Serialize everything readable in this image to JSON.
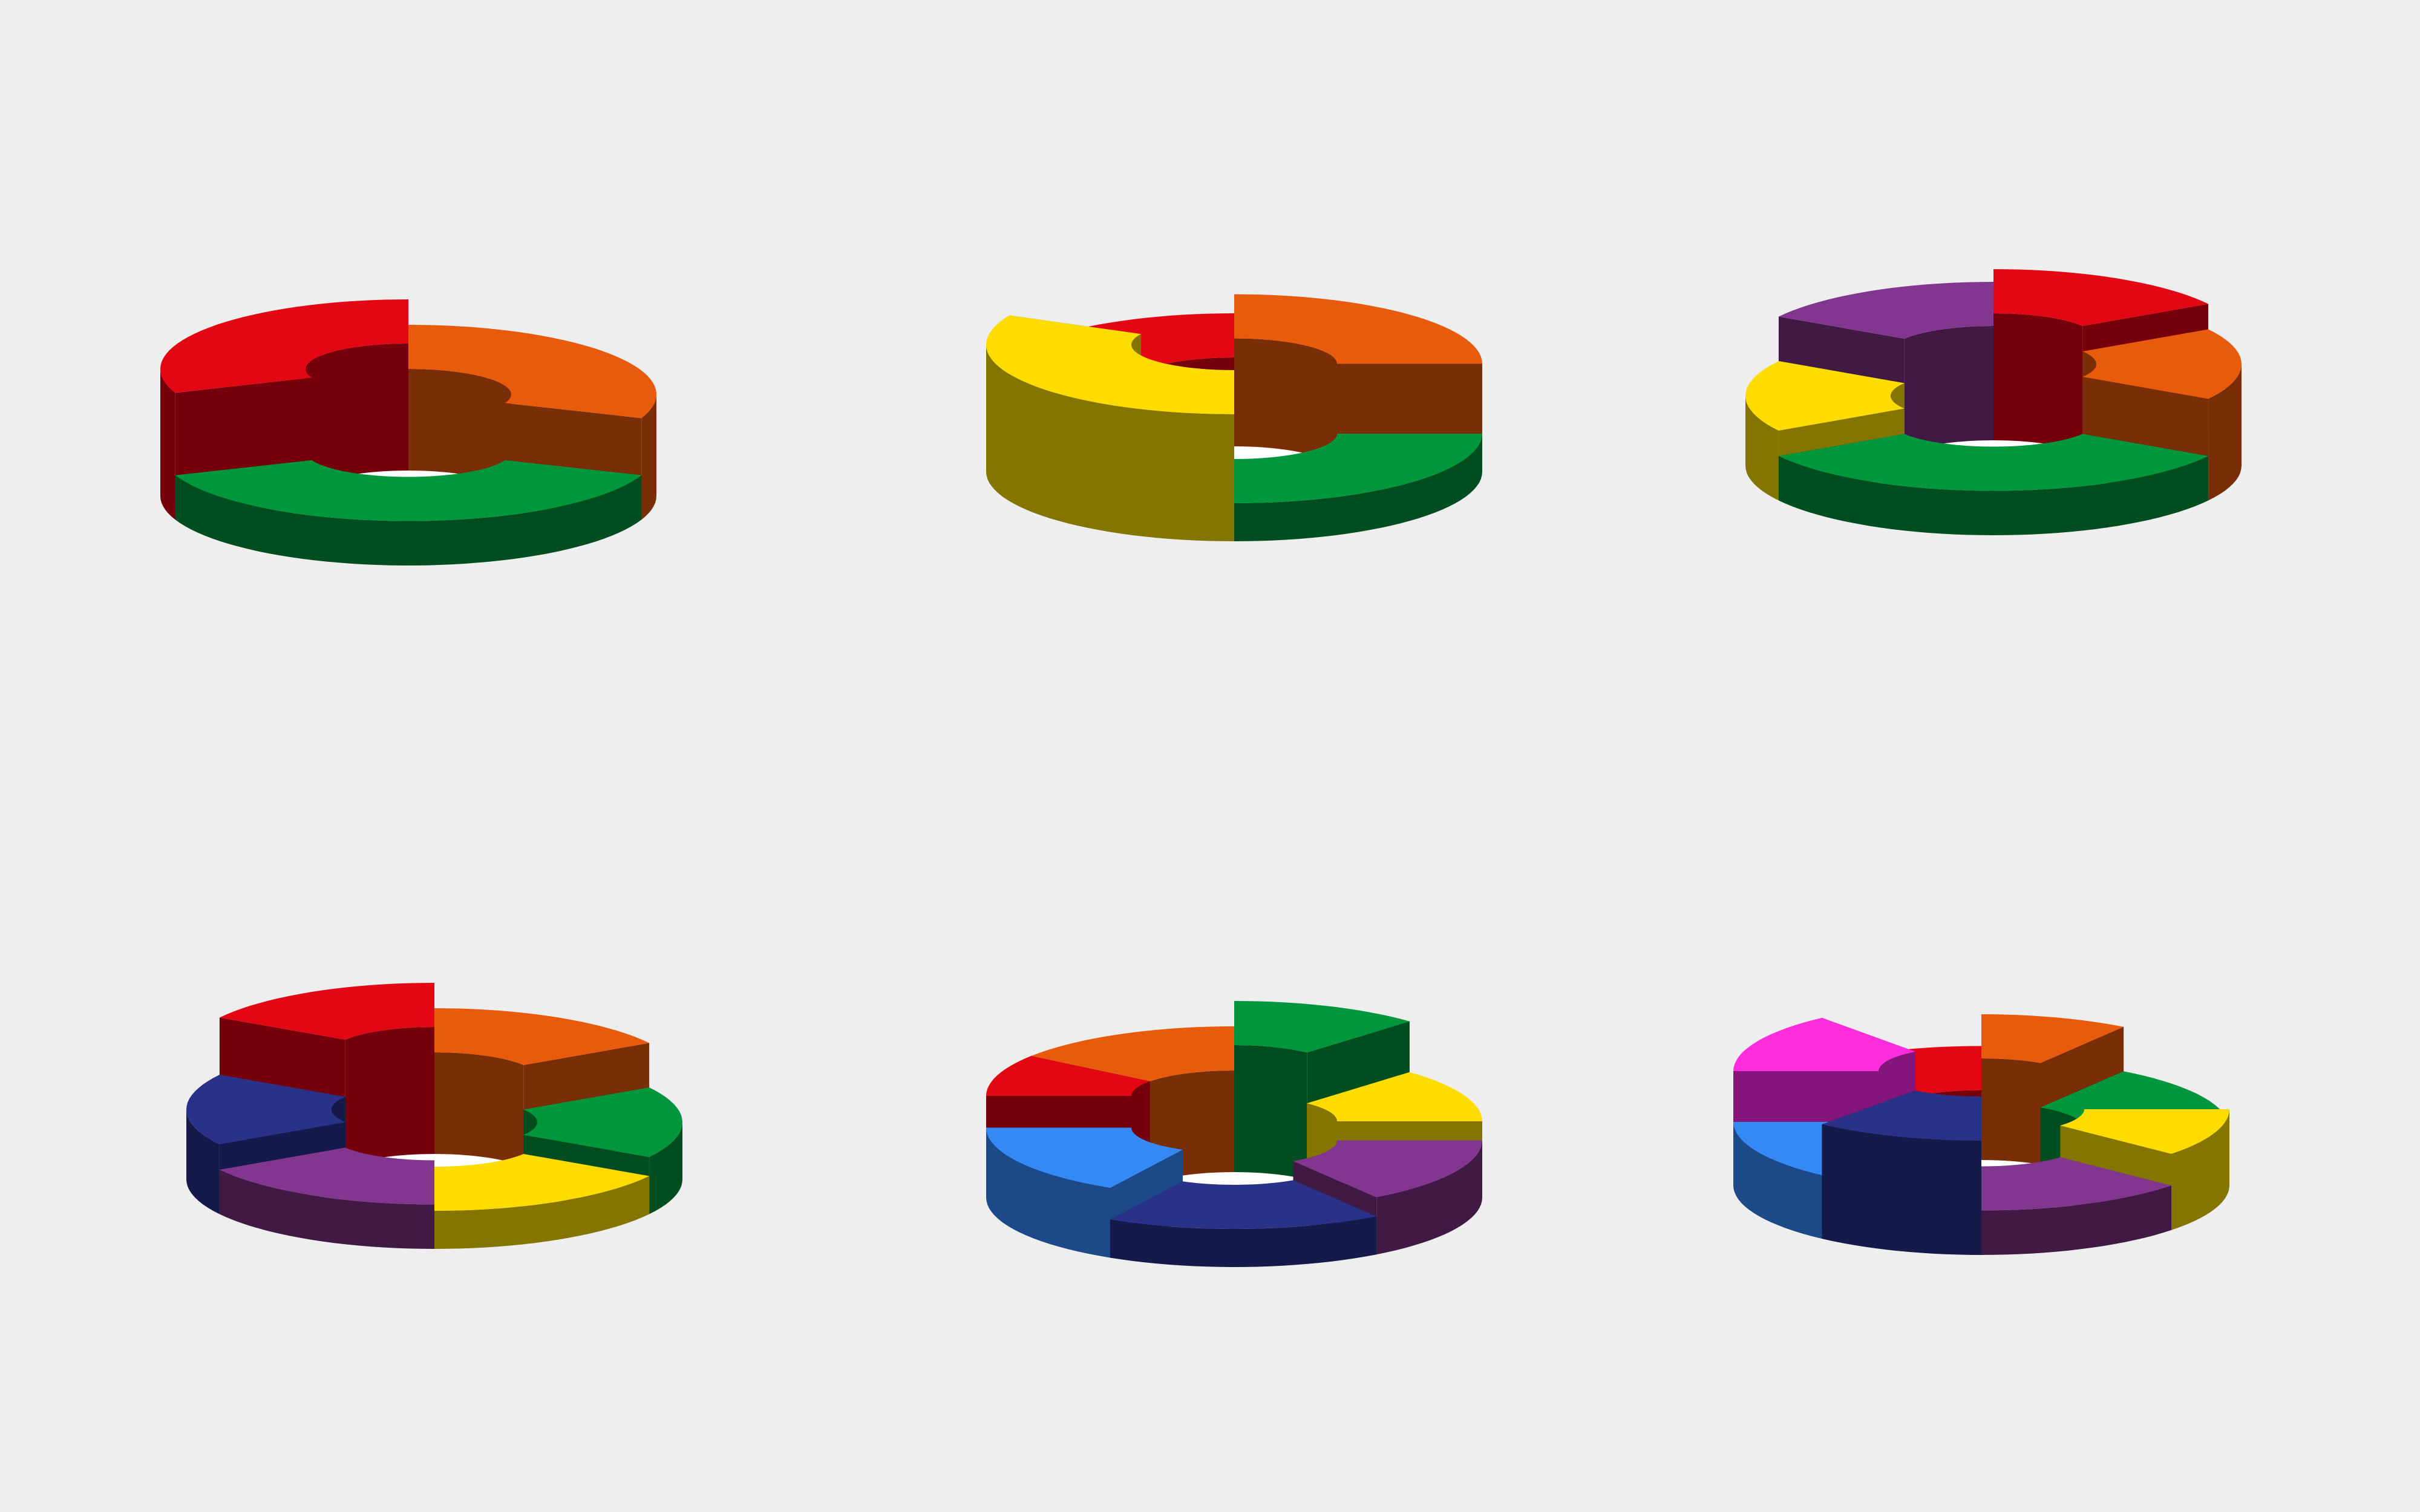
{
  "background": "#eeeeee",
  "chart_data": [
    {
      "type": "3d-donut",
      "segments": [
        {
          "color": "#e30613",
          "side": "#75000b",
          "a0": 90,
          "a1": 200,
          "h": 1.0
        },
        {
          "color": "#e85a0c",
          "side": "#7a2e08",
          "a0": -20,
          "a1": 90,
          "h": 0.8
        },
        {
          "color": "#00963b",
          "side": "#004e1f",
          "a0": 200,
          "a1": 340,
          "h": 0.35
        }
      ]
    },
    {
      "type": "3d-donut",
      "segments": [
        {
          "color": "#e85a0c",
          "side": "#7a2e08",
          "a0": 0,
          "a1": 90,
          "h": 0.85
        },
        {
          "color": "#e30613",
          "side": "#75000b",
          "a0": 90,
          "a1": 155,
          "h": 0.7
        },
        {
          "color": "#ffdc00",
          "side": "#847400",
          "a0": 155,
          "a1": 270,
          "h": 1.0
        },
        {
          "color": "#00963b",
          "side": "#004e1f",
          "a0": 270,
          "a1": 360,
          "h": 0.3
        }
      ]
    },
    {
      "type": "3d-donut",
      "segments": [
        {
          "color": "#e30613",
          "side": "#75000b",
          "a0": 30,
          "a1": 90,
          "h": 1.0
        },
        {
          "color": "#e85a0c",
          "side": "#7a2e08",
          "a0": -30,
          "a1": 30,
          "h": 0.8
        },
        {
          "color": "#00963b",
          "side": "#004e1f",
          "a0": 210,
          "a1": 330,
          "h": 0.35
        },
        {
          "color": "#ffdc00",
          "side": "#847400",
          "a0": 150,
          "a1": 210,
          "h": 0.55
        },
        {
          "color": "#83368f",
          "side": "#401a45",
          "a0": 90,
          "a1": 150,
          "h": 0.9
        }
      ]
    },
    {
      "type": "3d-donut",
      "segments": [
        {
          "color": "#e30613",
          "side": "#75000b",
          "a0": 90,
          "a1": 150,
          "h": 1.0
        },
        {
          "color": "#e85a0c",
          "side": "#7a2e08",
          "a0": 30,
          "a1": 90,
          "h": 0.8
        },
        {
          "color": "#00963b",
          "side": "#004e1f",
          "a0": -30,
          "a1": 30,
          "h": 0.45
        },
        {
          "color": "#ffdc00",
          "side": "#847400",
          "a0": 270,
          "a1": 330,
          "h": 0.3
        },
        {
          "color": "#83368f",
          "side": "#401a45",
          "a0": 210,
          "a1": 270,
          "h": 0.35
        },
        {
          "color": "#293188",
          "side": "#141a4a",
          "a0": 150,
          "a1": 210,
          "h": 0.55
        }
      ]
    },
    {
      "type": "3d-donut",
      "segments": [
        {
          "color": "#00963b",
          "side": "#004e1f",
          "a0": 45,
          "a1": 90,
          "h": 1.0
        },
        {
          "color": "#e85a0c",
          "side": "#7a2e08",
          "a0": 90,
          "a1": 145,
          "h": 0.8
        },
        {
          "color": "#ffdc00",
          "side": "#847400",
          "a0": 0,
          "a1": 45,
          "h": 0.6
        },
        {
          "color": "#83368f",
          "side": "#401a45",
          "a0": 305,
          "a1": 360,
          "h": 0.45
        },
        {
          "color": "#293188",
          "side": "#141a4a",
          "a0": 240,
          "a1": 305,
          "h": 0.3
        },
        {
          "color": "#3589f5",
          "side": "#1c4988",
          "a0": 180,
          "a1": 240,
          "h": 0.55
        },
        {
          "color": "#e30613",
          "side": "#75000b",
          "a0": 145,
          "a1": 180,
          "h": 0.8
        }
      ]
    },
    {
      "type": "3d-donut",
      "segments": [
        {
          "color": "#e85a0c",
          "side": "#7a2e08",
          "a0": 55,
          "a1": 90,
          "h": 0.8
        },
        {
          "color": "#e30613",
          "side": "#75000b",
          "a0": 90,
          "a1": 130,
          "h": 0.55
        },
        {
          "color": "#ff2ddc",
          "side": "#84157a",
          "a0": 130,
          "a1": 180,
          "h": 0.9
        },
        {
          "color": "#3589f5",
          "side": "#1c4988",
          "a0": 180,
          "a1": 230,
          "h": 0.5
        },
        {
          "color": "#293188",
          "side": "#141a4a",
          "a0": 230,
          "a1": 270,
          "h": 0.9
        },
        {
          "color": "#83368f",
          "side": "#401a45",
          "a0": 270,
          "a1": 320,
          "h": 0.35
        },
        {
          "color": "#ffdc00",
          "side": "#847400",
          "a0": 320,
          "a1": 360,
          "h": 0.6
        },
        {
          "color": "#00963b",
          "side": "#004e1f",
          "a0": 0,
          "a1": 55,
          "h": 0.45
        }
      ]
    }
  ]
}
